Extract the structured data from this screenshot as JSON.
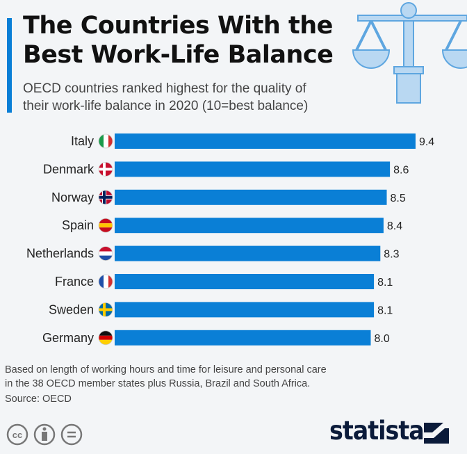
{
  "header": {
    "title_line1": "The Countries With the",
    "title_line2": "Best Work-Life Balance",
    "subtitle_line1": "OECD countries ranked highest for the quality of",
    "subtitle_line2": "their work-life balance in 2020 (10=best balance)",
    "icon": "scales-of-justice-icon"
  },
  "chart_data": {
    "type": "bar",
    "orientation": "horizontal",
    "categories": [
      "Italy",
      "Denmark",
      "Norway",
      "Spain",
      "Netherlands",
      "France",
      "Sweden",
      "Germany"
    ],
    "values": [
      9.4,
      8.6,
      8.5,
      8.4,
      8.3,
      8.1,
      8.1,
      8.0
    ],
    "data_labels": [
      "9.4",
      "8.6",
      "8.5",
      "8.4",
      "8.3",
      "8.1",
      "8.1",
      "8.0"
    ],
    "xlim": [
      0,
      10
    ],
    "grid": false,
    "bar_color": "#0a7fd6"
  },
  "footer": {
    "note_line1": "Based on length of working hours and time for leisure and personal care",
    "note_line2": "in the 38 OECD member states plus Russia, Brazil and South Africa.",
    "source": "Source: OECD",
    "license_icons": [
      "cc-icon",
      "attribution-icon",
      "no-derivatives-icon"
    ],
    "brand": "statista"
  }
}
